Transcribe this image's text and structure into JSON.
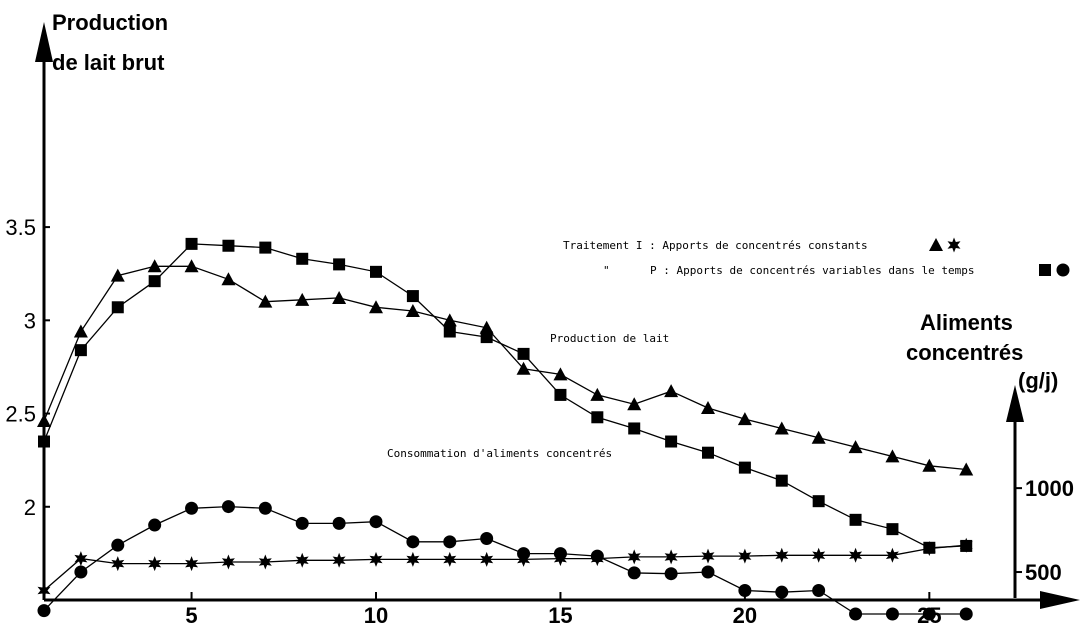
{
  "chart_data": {
    "type": "line",
    "y_axis_title": [
      "Production",
      "de lait brut"
    ],
    "y2_axis_title": [
      "Aliments",
      "concentrés",
      "(g/j)"
    ],
    "legend": {
      "line1_prefix": "Traitement I : Apports de concentrés constants",
      "line2_ditto": "\"",
      "line2_prefix": "P : Apports de concentrés variables dans le temps"
    },
    "annotations": {
      "milk": "Production de lait",
      "feed": "Consommation d'aliments concentrés"
    },
    "x": [
      1,
      2,
      3,
      4,
      5,
      6,
      7,
      8,
      9,
      10,
      11,
      12,
      13,
      14,
      15,
      16,
      17,
      18,
      19,
      20,
      21,
      22,
      23,
      24,
      25,
      26
    ],
    "x_ticks": [
      5,
      10,
      15,
      20,
      25
    ],
    "x_tick_labels": [
      "5",
      "10",
      "15",
      "20",
      "25"
    ],
    "xlim": [
      1,
      28
    ],
    "y_ticks": [
      2,
      2.5,
      3,
      3.5
    ],
    "y_tick_labels": [
      "2",
      "2.5",
      "3",
      "3.5"
    ],
    "ylim": [
      1.5,
      4.6
    ],
    "y2_ticks": [
      500,
      1000
    ],
    "y2_tick_labels": [
      "500",
      "1000"
    ],
    "y2_scale": {
      "value_at_y_1_65": 500,
      "value_at_y_2_1": 1000
    },
    "series": [
      {
        "name": "I — Production de lait",
        "axis": "left",
        "marker": "triangle",
        "values": [
          2.46,
          2.94,
          3.24,
          3.29,
          3.29,
          3.22,
          3.1,
          3.11,
          3.12,
          3.07,
          3.05,
          3.0,
          2.96,
          2.74,
          2.71,
          2.6,
          2.55,
          2.62,
          2.53,
          2.47,
          2.42,
          2.37,
          2.32,
          2.27,
          2.22,
          2.2
        ]
      },
      {
        "name": "P — Production de lait",
        "axis": "left",
        "marker": "square",
        "values": [
          2.35,
          2.84,
          3.07,
          3.21,
          3.41,
          3.4,
          3.39,
          3.33,
          3.3,
          3.26,
          3.13,
          2.94,
          2.91,
          2.82,
          2.6,
          2.48,
          2.42,
          2.35,
          2.29,
          2.21,
          2.14,
          2.03,
          1.93,
          1.88,
          1.78,
          1.79
        ]
      },
      {
        "name": "I — Consommation d'aliments concentrés",
        "axis": "right",
        "marker": "star",
        "values": [
          390,
          580,
          550,
          550,
          550,
          560,
          560,
          570,
          570,
          575,
          575,
          575,
          575,
          575,
          580,
          580,
          590,
          590,
          595,
          595,
          600,
          600,
          600,
          600,
          640,
          660
        ]
      },
      {
        "name": "P — Consommation d'aliments concentrés",
        "axis": "right",
        "marker": "circle",
        "values": [
          270,
          500,
          660,
          780,
          880,
          890,
          880,
          790,
          790,
          800,
          680,
          680,
          700,
          610,
          610,
          595,
          495,
          490,
          500,
          390,
          380,
          390,
          250,
          250,
          250,
          250
        ]
      }
    ]
  }
}
